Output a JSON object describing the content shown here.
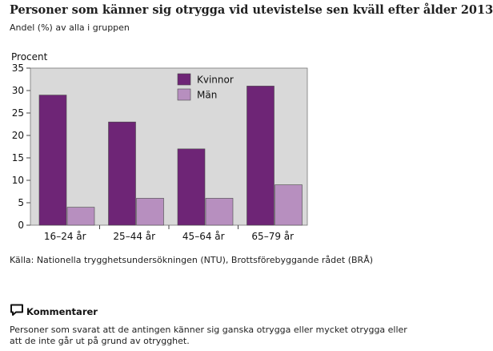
{
  "header": {
    "title": "Personer som känner sig otrygga vid utevistelse sen kväll efter ålder 2013",
    "subtitle": "Andel (%) av alla i gruppen"
  },
  "chart_data": {
    "type": "bar",
    "ylabel": "Procent",
    "xlabel": "",
    "categories": [
      "16–24 år",
      "25–44 år",
      "45–64 år",
      "65–79 år"
    ],
    "series": [
      {
        "name": "Kvinnor",
        "values": [
          29,
          23,
          17,
          31
        ],
        "color": "#6e2576"
      },
      {
        "name": "Män",
        "values": [
          4,
          6,
          6,
          9
        ],
        "color": "#b78fbf"
      }
    ],
    "ylim": [
      0,
      35
    ],
    "yticks": [
      0,
      5,
      10,
      15,
      20,
      25,
      30,
      35
    ],
    "grid": false,
    "legend": "top-right",
    "plot_background": "#d9d9d9"
  },
  "source": {
    "text": "Källa: Nationella trygghetsundersökningen (NTU), Brottsförebyggande rådet (BRÅ)"
  },
  "comment": {
    "icon": "speech-bubble-icon",
    "title": "Kommentarer",
    "text": "Personer som svarat att de antingen känner sig ganska otrygga eller mycket otrygga eller att de inte går ut på grund av otrygghet."
  }
}
